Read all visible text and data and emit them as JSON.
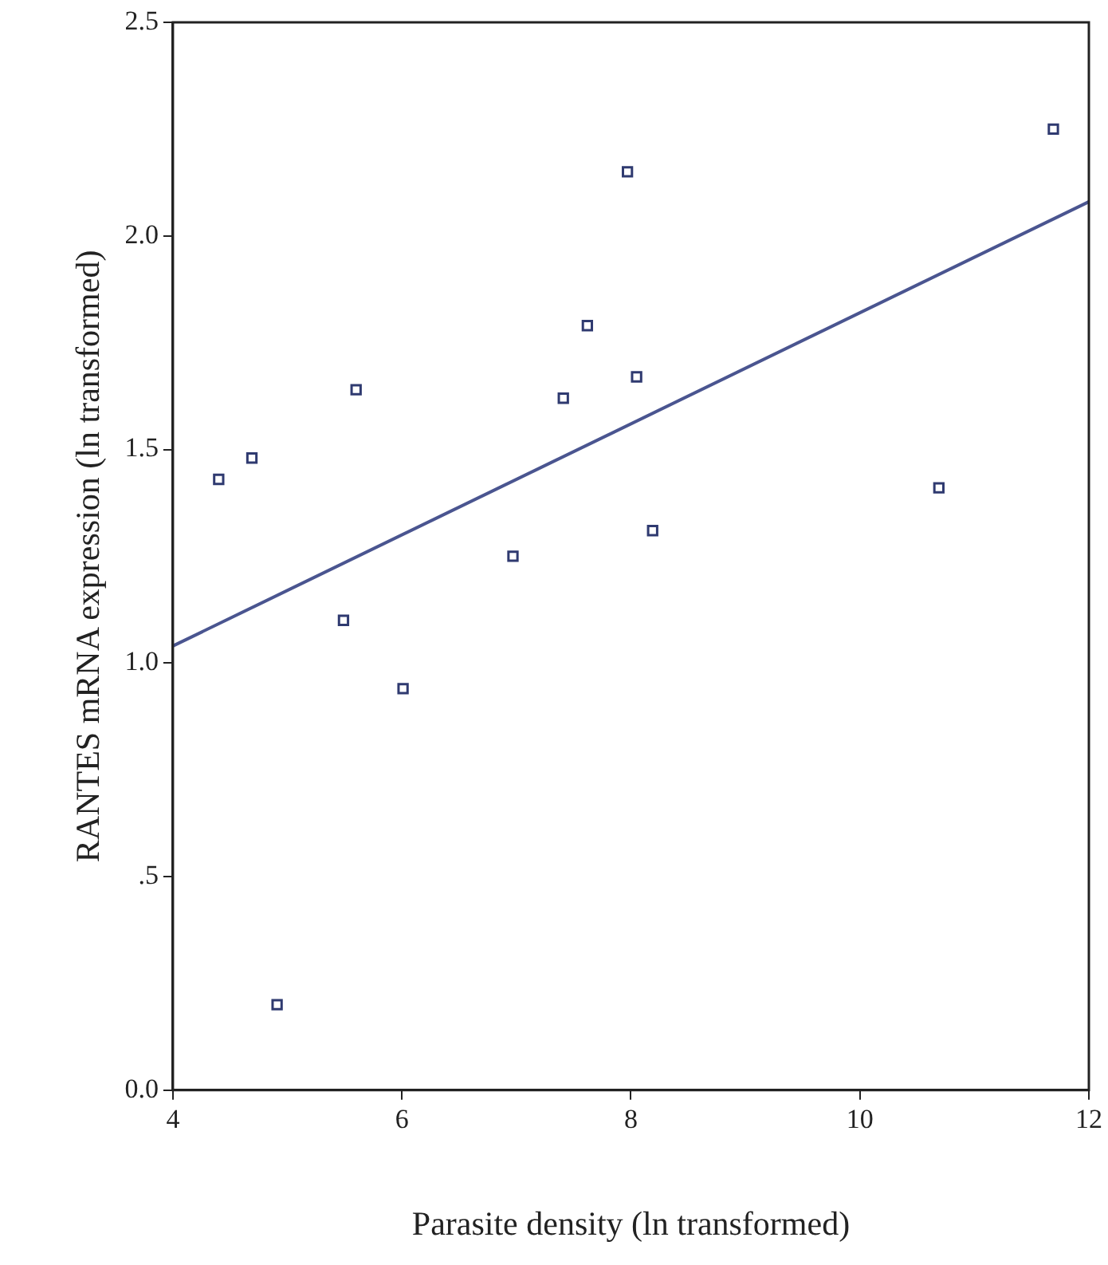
{
  "chart_data": {
    "type": "scatter",
    "xlabel": "Parasite density (ln transformed)",
    "ylabel": "RANTES mRNA expression (ln transformed)",
    "xlim": [
      4,
      12
    ],
    "xticks": [
      4,
      6,
      8,
      10,
      12
    ],
    "ylim": [
      0,
      2.5
    ],
    "yticks": [
      {
        "value": 0,
        "label": "0.0"
      },
      {
        "value": 0.5,
        "label": ".5"
      },
      {
        "value": 1,
        "label": "1.0"
      },
      {
        "value": 1.5,
        "label": "1.5"
      },
      {
        "value": 2,
        "label": "2.0"
      },
      {
        "value": 2.5,
        "label": "2.5"
      }
    ],
    "grid": false,
    "legend": false,
    "series": [
      {
        "color": "#2f3a70",
        "marker": "square",
        "x": [
          4.4,
          4.69,
          5.6,
          7.41,
          7.62,
          8.05,
          7.97,
          11.69,
          10.69,
          8.19,
          6.97,
          5.49,
          6.01,
          4.91
        ],
        "values": [
          1.43,
          1.48,
          1.64,
          1.62,
          1.79,
          1.67,
          2.15,
          2.25,
          1.41,
          1.31,
          1.25,
          1.1,
          0.94,
          0.2
        ]
      },
      {
        "type": "line",
        "marker": "none",
        "color": "#4a5590",
        "x": [
          4,
          12
        ],
        "values": [
          1.04,
          2.08
        ]
      }
    ]
  }
}
